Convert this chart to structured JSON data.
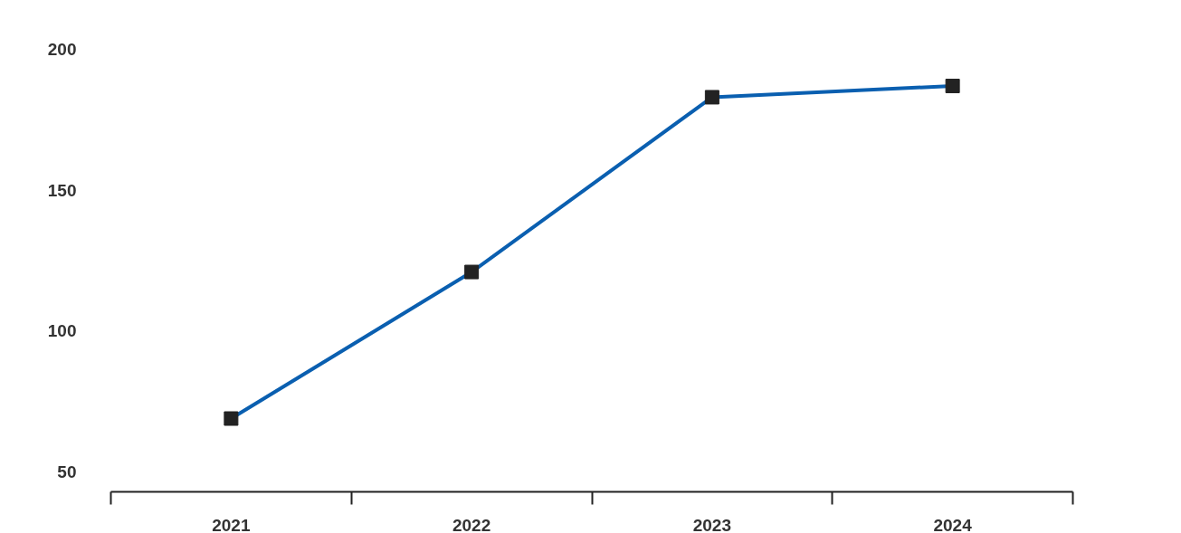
{
  "chart_data": {
    "type": "line",
    "categories": [
      "2021",
      "2022",
      "2023",
      "2024"
    ],
    "series": [
      {
        "color": "#0a5fb0",
        "colors": [
          "#222222",
          "#222222",
          "#222222",
          "#222222"
        ],
        "values": [
          69,
          121,
          183,
          187
        ]
      }
    ],
    "ylim": [
      43,
      200
    ],
    "yticks": [
      50,
      100,
      150,
      200
    ],
    "marker": "square",
    "grid": false
  }
}
